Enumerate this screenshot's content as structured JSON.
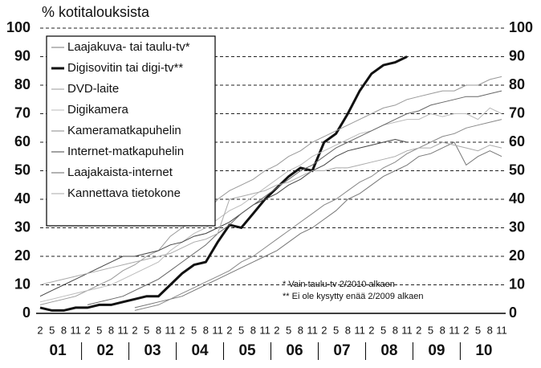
{
  "chart_data": {
    "type": "line",
    "ylabel": "% kotitalouksista",
    "categories": [
      "2",
      "5",
      "8",
      "11",
      "2",
      "5",
      "8",
      "11",
      "2",
      "5",
      "8",
      "11",
      "2",
      "5",
      "8",
      "11",
      "2",
      "5",
      "8",
      "11",
      "2",
      "5",
      "8",
      "11",
      "2",
      "5",
      "8",
      "11",
      "2",
      "5",
      "8",
      "11",
      "2",
      "5",
      "8",
      "11",
      "2",
      "5",
      "8",
      "11"
    ],
    "groups": [
      "01",
      "02",
      "03",
      "04",
      "05",
      "06",
      "07",
      "08",
      "09",
      "10"
    ],
    "ylim": [
      0,
      100
    ],
    "yticks": [
      0,
      10,
      20,
      30,
      40,
      50,
      60,
      70,
      80,
      90,
      100
    ],
    "grid": true,
    "legend": "upper left",
    "notes": [
      "* Vain taulu-tv 2/2010 alkaen",
      "** Ei ole kysytty enää 2/2009 alkaen"
    ],
    "series": [
      {
        "name": "Laajakuva- tai taulu-tv*",
        "color": "#777777",
        "width": 1,
        "values": [
          null,
          null,
          null,
          null,
          null,
          null,
          null,
          null,
          2,
          3,
          4,
          5,
          6,
          8,
          10,
          12,
          14,
          16,
          18,
          20,
          22,
          25,
          28,
          30,
          33,
          36,
          40,
          42,
          45,
          48,
          50,
          52,
          55,
          56,
          58,
          60,
          52,
          55,
          57,
          55
        ]
      },
      {
        "name": "Digisovitin tai digi-tv**",
        "color": "#111111",
        "width": 3,
        "values": [
          2,
          1,
          1,
          2,
          2,
          3,
          3,
          4,
          5,
          6,
          6,
          10,
          14,
          17,
          18,
          25,
          31,
          30,
          35,
          40,
          44,
          48,
          51,
          50,
          60,
          63,
          70,
          78,
          84,
          87,
          88,
          90,
          null,
          null,
          null,
          null,
          null,
          null,
          null,
          null
        ]
      },
      {
        "name": "DVD-laite",
        "color": "#999999",
        "width": 1,
        "values": [
          3,
          4,
          5,
          6,
          8,
          10,
          12,
          15,
          17,
          20,
          22,
          27,
          30,
          33,
          35,
          40,
          43,
          45,
          47,
          50,
          52,
          55,
          57,
          60,
          62,
          64,
          66,
          68,
          70,
          72,
          73,
          75,
          76,
          77,
          78,
          78,
          80,
          80,
          82,
          83
        ]
      },
      {
        "name": "Digikamera",
        "color": "#bbbbbb",
        "width": 1,
        "values": [
          4,
          5,
          6,
          7,
          8,
          9,
          10,
          12,
          14,
          16,
          18,
          22,
          25,
          28,
          30,
          33,
          36,
          38,
          41,
          44,
          47,
          50,
          52,
          55,
          57,
          59,
          61,
          63,
          64,
          66,
          67,
          68,
          68,
          70,
          69,
          70,
          70,
          68,
          72,
          70
        ]
      },
      {
        "name": "Kameramatkapuhelin",
        "color": "#888888",
        "width": 1,
        "values": [
          null,
          null,
          null,
          null,
          null,
          null,
          null,
          null,
          1,
          2,
          3,
          5,
          7,
          9,
          11,
          13,
          15,
          18,
          20,
          23,
          26,
          29,
          32,
          35,
          38,
          40,
          43,
          46,
          48,
          51,
          53,
          56,
          58,
          60,
          62,
          63,
          65,
          66,
          67,
          68
        ]
      },
      {
        "name": "Internet-matkapuhelin",
        "color": "#444444",
        "width": 1,
        "values": [
          6,
          8,
          10,
          12,
          14,
          16,
          18,
          20,
          20,
          21,
          22,
          24,
          25,
          27,
          28,
          30,
          32,
          35,
          38,
          40,
          42,
          45,
          47,
          50,
          52,
          55,
          57,
          58,
          59,
          60,
          61,
          60,
          null,
          null,
          null,
          null,
          null,
          null,
          null,
          null
        ]
      },
      {
        "name": "Laajakaista-internet",
        "color": "#666666",
        "width": 1,
        "values": [
          null,
          null,
          null,
          null,
          3,
          4,
          5,
          6,
          8,
          10,
          12,
          15,
          18,
          21,
          24,
          28,
          31,
          35,
          38,
          41,
          44,
          47,
          50,
          52,
          55,
          58,
          60,
          62,
          64,
          66,
          68,
          70,
          71,
          73,
          74,
          75,
          76,
          76,
          77,
          78
        ]
      },
      {
        "name": "Kannettava tietokone",
        "color": "#aaaaaa",
        "width": 1,
        "values": [
          10,
          11,
          12,
          13,
          14,
          15,
          16,
          17,
          18,
          19,
          20,
          21,
          23,
          25,
          26,
          28,
          40,
          41,
          42,
          43,
          45,
          46,
          48,
          50,
          50,
          51,
          51,
          52,
          53,
          54,
          55,
          57,
          58,
          58,
          60,
          59,
          58,
          57,
          59,
          58
        ]
      }
    ]
  }
}
